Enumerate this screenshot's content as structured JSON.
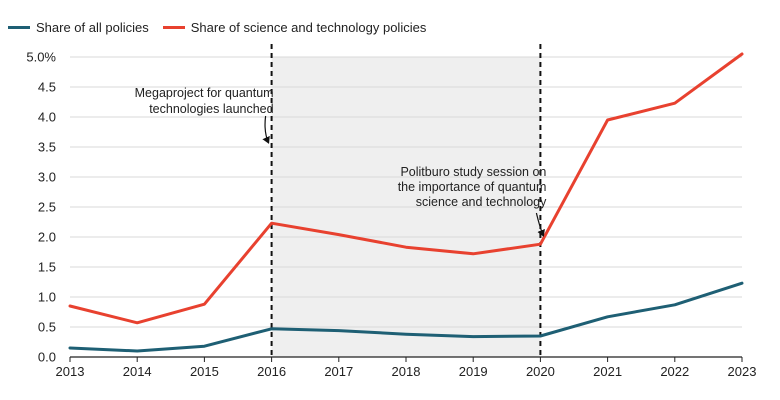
{
  "chart_data": {
    "type": "line",
    "x": [
      2013,
      2014,
      2015,
      2016,
      2017,
      2018,
      2019,
      2020,
      2021,
      2022,
      2023
    ],
    "series": [
      {
        "name": "Share of all policies",
        "color": "#1e5f74",
        "values": [
          0.15,
          0.1,
          0.18,
          0.47,
          0.44,
          0.38,
          0.34,
          0.35,
          0.67,
          0.87,
          1.23
        ]
      },
      {
        "name": "Share of science and technology policies",
        "color": "#e8412f",
        "values": [
          0.85,
          0.57,
          0.88,
          2.23,
          2.04,
          1.83,
          1.72,
          1.88,
          3.95,
          4.23,
          5.05
        ]
      }
    ],
    "ylim": [
      0,
      5.0
    ],
    "yticks": [
      {
        "value": 0.0,
        "label": "0.0"
      },
      {
        "value": 0.5,
        "label": "0.5"
      },
      {
        "value": 1.0,
        "label": "1.0"
      },
      {
        "value": 1.5,
        "label": "1.5"
      },
      {
        "value": 2.0,
        "label": "2.0"
      },
      {
        "value": 2.5,
        "label": "2.5"
      },
      {
        "value": 3.0,
        "label": "3.0"
      },
      {
        "value": 3.5,
        "label": "3.5"
      },
      {
        "value": 4.0,
        "label": "4.0"
      },
      {
        "value": 4.5,
        "label": "4.5"
      },
      {
        "value": 5.0,
        "label": "5.0%"
      }
    ],
    "shaded_range": [
      2016,
      2020
    ],
    "shade_color": "#efefef",
    "grid": true,
    "legend_position": "top-left",
    "annotations": [
      {
        "x": 2016,
        "lines": [
          "Megaproject for quantum",
          "technologies launched"
        ]
      },
      {
        "x": 2020,
        "lines": [
          "Politburo study session on",
          "the importance of quantum",
          "science and technology"
        ]
      }
    ]
  }
}
